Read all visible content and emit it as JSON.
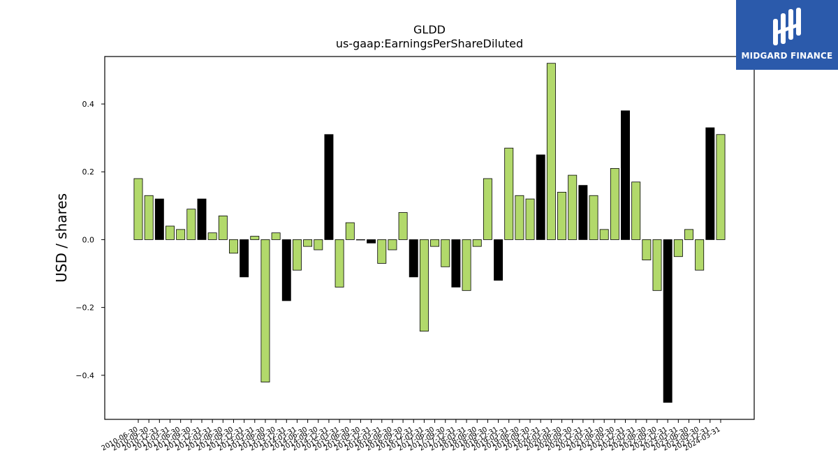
{
  "brand": {
    "name": "MIDGARD FINANCE",
    "bg_color": "#2b5aab",
    "logo_icon": "midgard-m-logo"
  },
  "chart_data": {
    "type": "bar",
    "title": "GLDD",
    "subtitle": "us-gaap:EarningsPerShareDiluted",
    "ylabel": "USD / shares",
    "xlabel": "",
    "ylim": [
      -0.53,
      0.54
    ],
    "yticks": [
      -0.4,
      -0.2,
      0.0,
      0.2,
      0.4
    ],
    "colors": {
      "quarter": "#b2d96b",
      "fiscal_year_end": "#000000"
    },
    "grid": false,
    "categories": [
      "2010-06-30",
      "2010-09-30",
      "2010-12-31",
      "2011-03-31",
      "2011-06-30",
      "2011-09-30",
      "2011-12-31",
      "2012-03-31",
      "2012-06-30",
      "2012-09-30",
      "2012-12-31",
      "2013-03-31",
      "2013-06-30",
      "2013-09-30",
      "2013-12-31",
      "2014-03-31",
      "2014-06-30",
      "2014-09-30",
      "2014-12-31",
      "2015-03-31",
      "2015-06-30",
      "2015-09-30",
      "2015-12-31",
      "2016-03-31",
      "2016-06-30",
      "2016-09-30",
      "2016-12-31",
      "2017-03-31",
      "2017-06-30",
      "2017-09-30",
      "2017-12-31",
      "2018-03-31",
      "2018-06-30",
      "2018-09-30",
      "2018-12-31",
      "2019-03-31",
      "2019-06-30",
      "2019-09-30",
      "2019-12-31",
      "2020-03-31",
      "2020-06-30",
      "2020-09-30",
      "2020-12-31",
      "2021-03-31",
      "2021-06-30",
      "2021-09-30",
      "2021-12-31",
      "2022-03-31",
      "2022-06-30",
      "2022-09-30",
      "2022-12-31",
      "2023-03-31",
      "2023-06-30",
      "2023-09-30",
      "2023-12-31",
      "2024-03-31"
    ],
    "values": [
      0.18,
      0.13,
      0.12,
      0.04,
      0.03,
      0.09,
      0.12,
      0.02,
      0.07,
      -0.04,
      -0.11,
      0.01,
      -0.42,
      0.02,
      -0.18,
      -0.09,
      -0.02,
      -0.03,
      0.31,
      -0.14,
      0.05,
      0.0,
      -0.01,
      -0.07,
      -0.03,
      0.08,
      -0.11,
      -0.27,
      -0.02,
      -0.08,
      -0.14,
      -0.15,
      -0.02,
      0.18,
      -0.12,
      0.27,
      0.13,
      0.12,
      0.25,
      0.52,
      0.14,
      0.19,
      0.16,
      0.13,
      0.03,
      0.21,
      0.38,
      0.17,
      -0.06,
      -0.15,
      -0.48,
      -0.05,
      0.03,
      -0.09,
      0.33,
      0.31
    ],
    "fiscal_year_end": [
      false,
      false,
      true,
      false,
      false,
      false,
      true,
      false,
      false,
      false,
      true,
      false,
      false,
      false,
      true,
      false,
      false,
      false,
      true,
      false,
      false,
      false,
      true,
      false,
      false,
      false,
      true,
      false,
      false,
      false,
      true,
      false,
      false,
      false,
      true,
      false,
      false,
      false,
      true,
      false,
      false,
      false,
      true,
      false,
      false,
      false,
      true,
      false,
      false,
      false,
      true,
      false,
      false,
      false,
      true,
      false
    ]
  }
}
